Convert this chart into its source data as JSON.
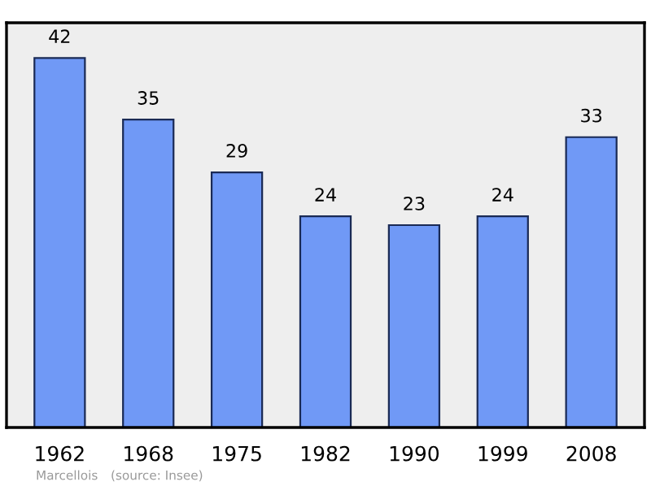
{
  "chart_data": {
    "type": "bar",
    "categories": [
      "1962",
      "1968",
      "1975",
      "1982",
      "1990",
      "1999",
      "2008"
    ],
    "values": [
      42,
      35,
      29,
      24,
      23,
      24,
      33
    ],
    "color": "#7099f6",
    "ylim": [
      0,
      46
    ],
    "data_labels": true,
    "grid": false,
    "annotations": [
      "Marcellois",
      "(source: Insee)"
    ]
  }
}
